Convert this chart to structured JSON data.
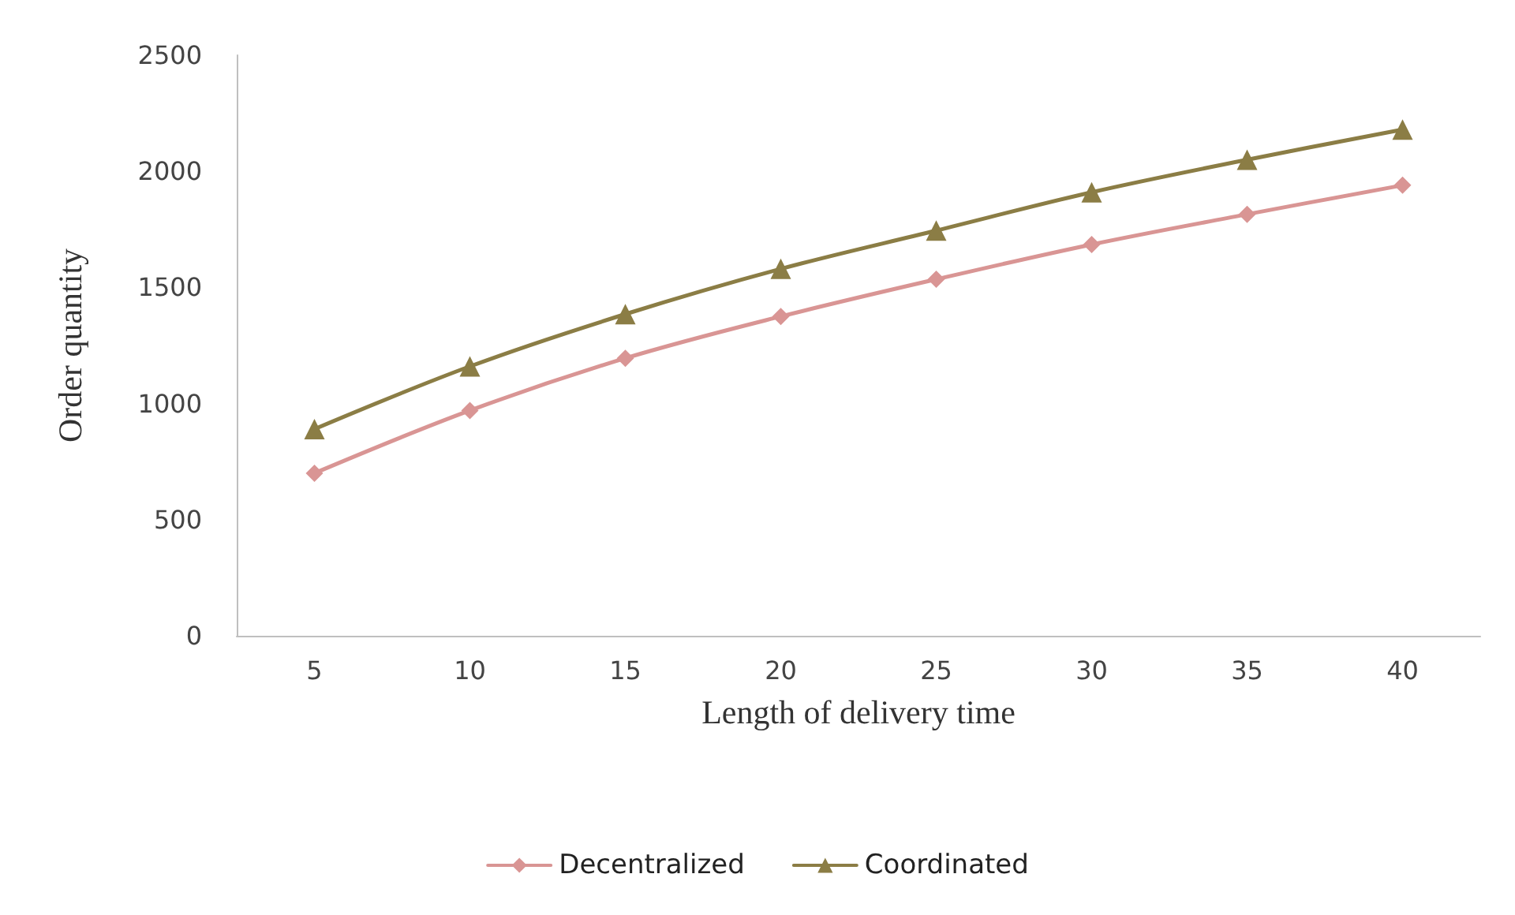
{
  "chart_data": {
    "type": "line",
    "xlabel": "Length of delivery time",
    "ylabel": "Order quantity",
    "categories": [
      "5",
      "10",
      "15",
      "20",
      "25",
      "30",
      "35",
      "40"
    ],
    "series": [
      {
        "name": "Decentralized",
        "color": "#d99594",
        "marker": "diamond",
        "values": [
          700,
          970,
          1195,
          1375,
          1535,
          1685,
          1815,
          1940
        ]
      },
      {
        "name": "Coordinated",
        "color": "#8b7d45",
        "marker": "triangle",
        "values": [
          890,
          1160,
          1385,
          1580,
          1745,
          1910,
          2050,
          2180
        ]
      }
    ],
    "ylim": [
      0,
      2500
    ],
    "yticks": [
      0,
      500,
      1000,
      1500,
      2000,
      2500
    ],
    "grid": false,
    "legend": "bottom",
    "line_style": "solid"
  }
}
